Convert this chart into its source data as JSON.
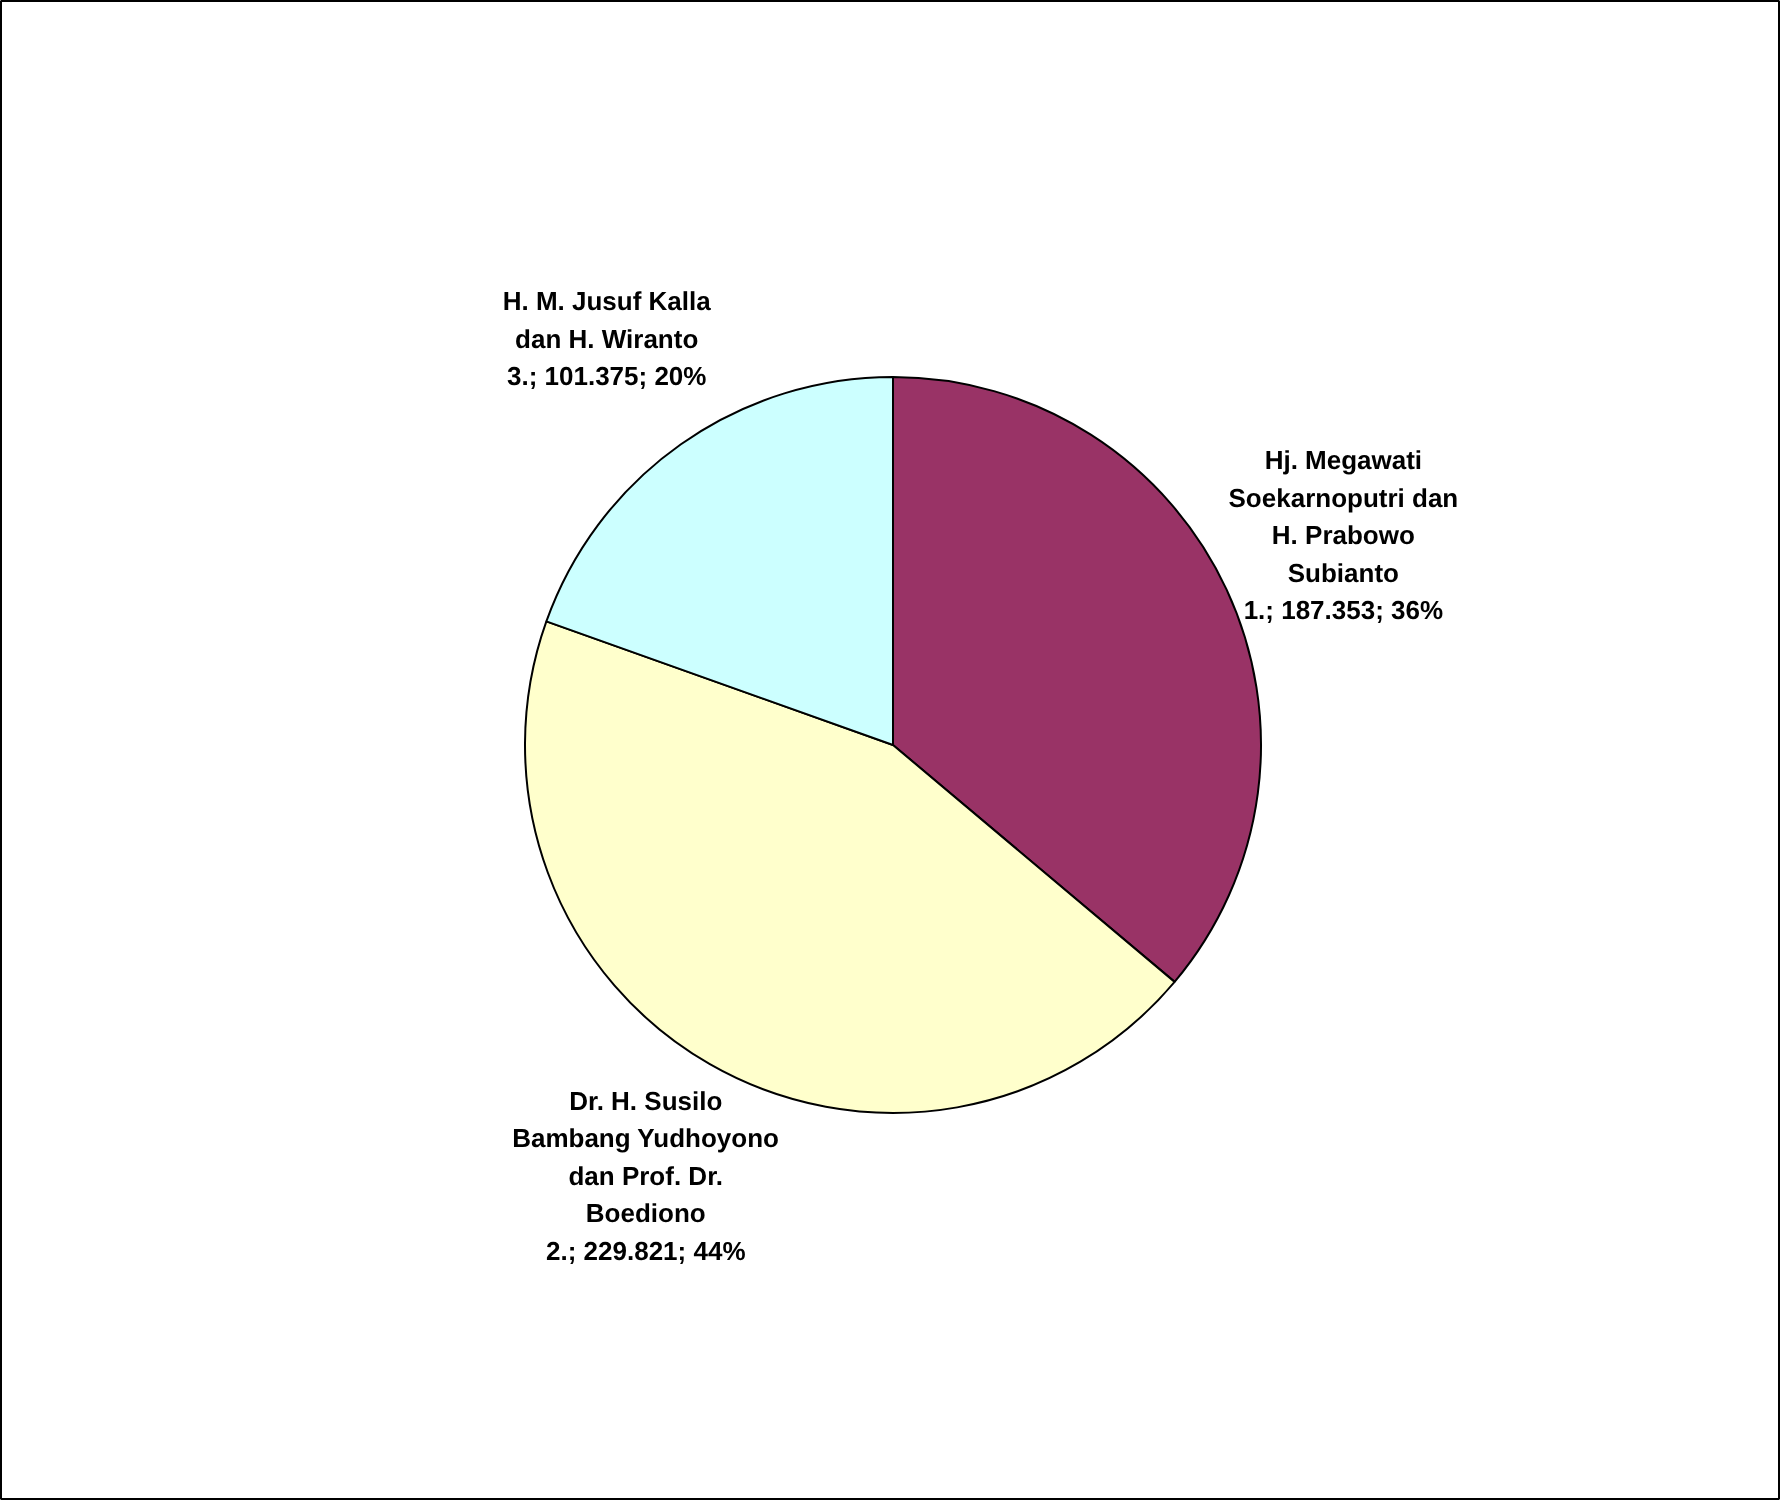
{
  "chart_data": {
    "type": "pie",
    "categories": [
      "Hj. Megawati Soekarnoputri dan H. Prabowo Subianto",
      "Dr. H. Susilo Bambang Yudhoyono dan Prof. Dr. Boediono",
      "H. M. Jusuf Kalla dan H. Wiranto"
    ],
    "values": [
      187.353,
      229.821,
      101.375
    ],
    "colors": [
      "#993366",
      "#ffffcc",
      "#ccffff"
    ],
    "value_labels": [
      "1.; 187.353; 36%",
      "2.; 229.821; 44%",
      "3.; 101.375; 20%"
    ]
  }
}
